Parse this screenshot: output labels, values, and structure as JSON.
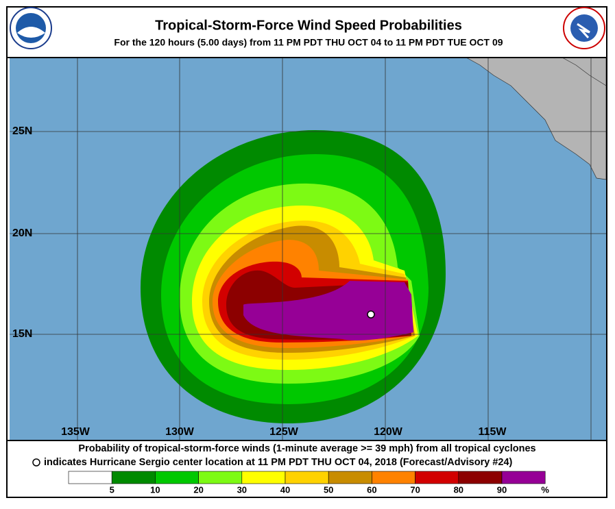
{
  "header": {
    "title": "Tropical-Storm-Force Wind Speed Probabilities",
    "subtitle": "For the 120 hours (5.00 days) from 11 PM PDT THU OCT 04 to 11 PM PDT TUE OCT 09"
  },
  "map": {
    "lat_labels": [
      "25N",
      "20N",
      "15N"
    ],
    "lon_labels": [
      "135W",
      "130W",
      "125W",
      "120W",
      "115W"
    ]
  },
  "footer": {
    "line1": "Probability of tropical-storm-force winds (1-minute average >= 39 mph) from all tropical cyclones",
    "line2": "indicates Hurricane Sergio center location at 11 PM PDT THU OCT 04, 2018 (Forecast/Advisory #24)"
  },
  "legend": {
    "colors": [
      "#ffffff",
      "#008a00",
      "#00c800",
      "#7dfa14",
      "#ffff00",
      "#ffd200",
      "#c88c00",
      "#ff8200",
      "#d20000",
      "#8c0000",
      "#960096"
    ],
    "labels": [
      "5",
      "10",
      "20",
      "30",
      "40",
      "50",
      "60",
      "70",
      "80",
      "90",
      "%"
    ]
  }
}
